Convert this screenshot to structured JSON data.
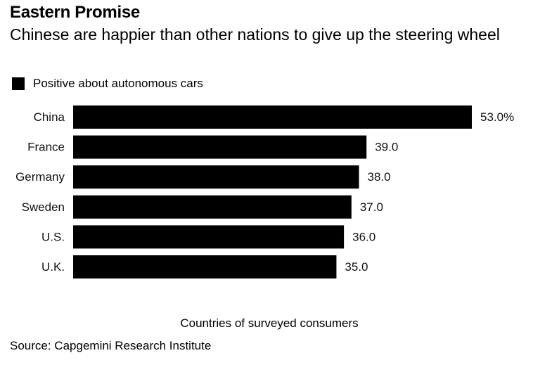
{
  "chart_data": {
    "type": "bar",
    "orientation": "horizontal",
    "title": "Eastern Promise",
    "subtitle": "Chinese are happier than other nations to give up the steering wheel",
    "categories": [
      "China",
      "France",
      "Germany",
      "Sweden",
      "U.S.",
      "U.K."
    ],
    "series": [
      {
        "name": "Positive about autonomous cars",
        "values": [
          53.0,
          39.0,
          38.0,
          37.0,
          36.0,
          35.0
        ],
        "value_labels": [
          "53.0%",
          "39.0",
          "38.0",
          "37.0",
          "36.0",
          "35.0"
        ],
        "color": "#000000"
      }
    ],
    "xlim": [
      0,
      53
    ],
    "xlabel": "",
    "ylabel": "Countries of surveyed consumers",
    "grid": false,
    "legend": "top-left",
    "source": "Source: Capgemini Research Institute"
  }
}
